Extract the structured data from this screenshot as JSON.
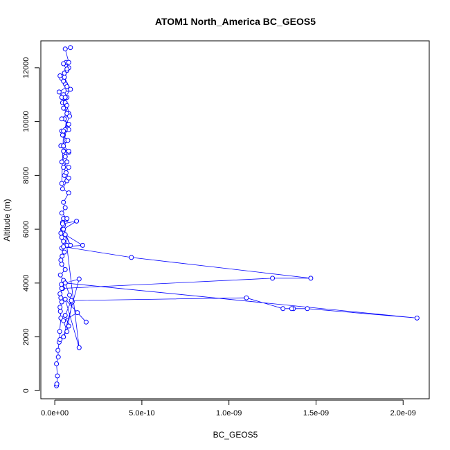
{
  "chart_data": {
    "type": "line",
    "title": "ATOM1 North_America BC_GEOS5",
    "xlabel": "BC_GEOS5",
    "ylabel": "Altitude (m)",
    "xlim": [
      -8e-11,
      2.15e-09
    ],
    "ylim": [
      -300,
      13000
    ],
    "x_ticks": [
      0,
      5e-10,
      1e-09,
      1.5e-09,
      2e-09
    ],
    "x_tick_labels": [
      "0.0e+00",
      "5.0e-10",
      "1.0e-09",
      "1.5e-09",
      "2.0e-09"
    ],
    "y_ticks": [
      0,
      2000,
      4000,
      6000,
      8000,
      10000,
      12000
    ],
    "y_tick_labels": [
      "0",
      "2000",
      "4000",
      "6000",
      "8000",
      "10000",
      "12000"
    ],
    "grid": false,
    "marker": "open-circle",
    "series": [
      {
        "color": "#0000ff",
        "x": [
          1e-11,
          1.2e-11,
          1.5e-11,
          1e-11,
          2e-11,
          1.8e-11,
          2.5e-11,
          3e-11,
          2.8e-11,
          3.5e-11,
          3.2e-11,
          3e-11,
          4e-11,
          3.5e-11,
          3e-11,
          4.5e-11,
          3.8e-11,
          5e-11,
          3.2e-11,
          6e-11,
          4e-11,
          3.5e-11,
          4.2e-11,
          5.5e-11,
          4e-11,
          7e-11,
          5e-11,
          4e-11,
          3.5e-11,
          4.5e-11,
          5e-11,
          4.5e-11,
          6.5e-11,
          5e-11,
          1.4e-10,
          6e-11,
          1.8e-10,
          1.3e-10,
          5e-11,
          7e-11,
          1e-10,
          8.5e-11,
          6e-11,
          2.08e-09,
          1.45e-09,
          1.37e-09,
          1.36e-09,
          1.31e-09,
          1.1e-09,
          9.5e-11,
          6e-11,
          8e-11,
          5e-11,
          1.4e-10,
          6e-11,
          4e-11,
          1.25e-09,
          1.47e-09,
          4.4e-10,
          5e-11,
          1.6e-10,
          6e-11,
          9e-11,
          5e-11,
          1.25e-10,
          4.5e-11,
          7e-11,
          4e-11,
          6e-11,
          5e-11,
          8e-11,
          4.5e-11,
          7e-11,
          5.5e-11,
          8e-11,
          4e-11,
          6e-11,
          5e-11,
          8e-11,
          3.5e-11,
          6.5e-11,
          5e-11,
          8e-11,
          4e-11,
          7.5e-11,
          5.5e-11,
          8e-11,
          6e-11,
          4.5e-11,
          7e-11,
          5e-11,
          7.5e-11,
          6e-11,
          4e-11,
          5.5e-11,
          8e-11,
          6.5e-11,
          5e-11,
          7e-11,
          3e-11,
          5e-11,
          7e-11,
          2.5e-11,
          4e-11,
          6e-11,
          5e-11,
          7e-11,
          4e-11,
          8e-11,
          6e-11,
          4.5e-11,
          7.5e-11,
          5e-11,
          8e-11,
          6e-11,
          7e-11,
          5e-11,
          6.5e-11,
          8e-11,
          4e-11,
          5e-11,
          8.5e-11,
          7e-11,
          6e-11,
          9e-11,
          5.5e-11,
          7e-11,
          8e-11,
          6e-11,
          9e-11
        ],
        "y": [
          180,
          250,
          550,
          1000,
          1250,
          1500,
          1800,
          1900,
          2200,
          2700,
          2950,
          3100,
          3300,
          3450,
          3600,
          3800,
          3950,
          4100,
          4300,
          4500,
          4700,
          4850,
          5000,
          5150,
          5300,
          5400,
          5550,
          5700,
          5850,
          6000,
          6150,
          6250,
          6350,
          6400,
          1600,
          3400,
          2550,
          2900,
          2600,
          2200,
          3300,
          3550,
          4000,
          2700,
          3050,
          3050,
          3050,
          3050,
          3450,
          3350,
          2800,
          2400,
          2000,
          4150,
          4000,
          3800,
          4180,
          4180,
          4950,
          5350,
          5400,
          5800,
          5400,
          6000,
          6300,
          6200,
          6400,
          6600,
          6800,
          7000,
          7350,
          7500,
          7800,
          8000,
          8300,
          8500,
          8700,
          8900,
          8850,
          9100,
          9300,
          9500,
          9700,
          9650,
          9900,
          10100,
          10300,
          10500,
          10700,
          10900,
          11000,
          11200,
          11400,
          11600,
          11800,
          12000,
          12200,
          12150,
          11900,
          11700,
          11500,
          11300,
          11100,
          10900,
          10700,
          10500,
          10300,
          10100,
          9900,
          9700,
          9500,
          9300,
          9100,
          8900,
          8700,
          8500,
          8300,
          8100,
          7900,
          7700,
          9650,
          10200,
          10600,
          10900,
          11200,
          11650,
          11950,
          12200,
          12700,
          12750
        ]
      }
    ]
  }
}
